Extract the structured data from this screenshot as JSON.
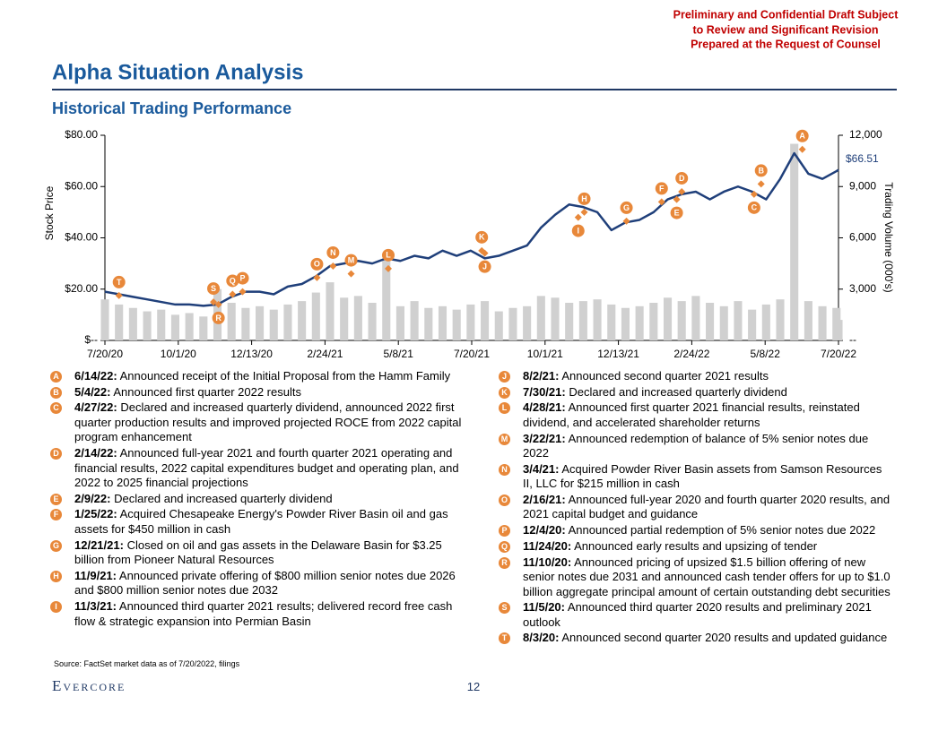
{
  "header": {
    "notice": [
      "Preliminary and Confidential Draft Subject",
      "to Review and Significant Revision",
      "Prepared at the Request of Counsel"
    ],
    "title": "Alpha Situation Analysis",
    "subtitle": "Historical Trading Performance"
  },
  "chart_data": {
    "type": "line",
    "y_label": "Stock Price",
    "y2_label": "Trading Volume (000's)",
    "x": [
      "2020-07-20",
      "2020-08-03",
      "2020-08-17",
      "2020-08-31",
      "2020-09-14",
      "2020-09-28",
      "2020-10-12",
      "2020-10-26",
      "2020-11-09",
      "2020-11-23",
      "2020-12-07",
      "2020-12-21",
      "2021-01-04",
      "2021-01-18",
      "2021-02-01",
      "2021-02-15",
      "2021-03-01",
      "2021-03-15",
      "2021-03-29",
      "2021-04-12",
      "2021-04-26",
      "2021-05-10",
      "2021-05-24",
      "2021-06-07",
      "2021-06-21",
      "2021-07-05",
      "2021-07-19",
      "2021-08-02",
      "2021-08-16",
      "2021-08-30",
      "2021-09-13",
      "2021-09-27",
      "2021-10-11",
      "2021-10-25",
      "2021-11-08",
      "2021-11-22",
      "2021-12-06",
      "2021-12-20",
      "2022-01-03",
      "2022-01-17",
      "2022-01-31",
      "2022-02-14",
      "2022-02-28",
      "2022-03-14",
      "2022-03-28",
      "2022-04-11",
      "2022-04-25",
      "2022-05-09",
      "2022-05-23",
      "2022-06-06",
      "2022-06-20",
      "2022-07-04",
      "2022-07-18",
      "2022-07-20"
    ],
    "xlim": [
      "2020-07-20",
      "2022-07-20"
    ],
    "xticks": [
      {
        "value": "2020-07-20",
        "label": "7/20/20"
      },
      {
        "value": "2020-10-01",
        "label": "10/1/20"
      },
      {
        "value": "2020-12-13",
        "label": "12/13/20"
      },
      {
        "value": "2021-02-24",
        "label": "2/24/21"
      },
      {
        "value": "2021-05-08",
        "label": "5/8/21"
      },
      {
        "value": "2021-07-20",
        "label": "7/20/21"
      },
      {
        "value": "2021-10-01",
        "label": "10/1/21"
      },
      {
        "value": "2021-12-13",
        "label": "12/13/21"
      },
      {
        "value": "2022-02-24",
        "label": "2/24/22"
      },
      {
        "value": "2022-05-08",
        "label": "5/8/22"
      },
      {
        "value": "2022-07-20",
        "label": "7/20/22"
      }
    ],
    "ylim": [
      0,
      80
    ],
    "yticks": [
      {
        "value": 0,
        "label": "$--"
      },
      {
        "value": 20,
        "label": "$20.00"
      },
      {
        "value": 40,
        "label": "$40.00"
      },
      {
        "value": 60,
        "label": "$60.00"
      },
      {
        "value": 80,
        "label": "$80.00"
      }
    ],
    "y2lim": [
      0,
      12000
    ],
    "y2ticks": [
      {
        "value": 0,
        "label": "--"
      },
      {
        "value": 3000,
        "label": "3,000"
      },
      {
        "value": 6000,
        "label": "6,000"
      },
      {
        "value": 9000,
        "label": "9,000"
      },
      {
        "value": 12000,
        "label": "12,000"
      }
    ],
    "series": [
      {
        "name": "Trading Volume",
        "type": "bar",
        "axis": "y2",
        "color": "#d0d0d0",
        "values": [
          2400,
          2100,
          1900,
          1700,
          1800,
          1500,
          1600,
          1400,
          3000,
          2200,
          1900,
          2000,
          1800,
          2100,
          2300,
          2800,
          3400,
          2500,
          2600,
          2200,
          4800,
          2000,
          2300,
          1900,
          2000,
          1800,
          2100,
          2300,
          1700,
          1900,
          2000,
          2600,
          2500,
          2200,
          2300,
          2400,
          2100,
          1900,
          2000,
          2200,
          2500,
          2300,
          2600,
          2200,
          2000,
          2300,
          1800,
          2100,
          2400,
          11500,
          2300,
          2000,
          1900,
          1200
        ]
      },
      {
        "name": "Stock Price",
        "type": "line",
        "color": "#1f3f7a",
        "values": [
          19,
          18,
          17,
          16,
          15,
          14,
          14,
          13.5,
          14,
          17,
          19,
          19,
          18,
          21,
          22,
          25,
          29,
          30,
          31,
          30,
          32,
          31,
          33,
          32,
          35,
          33,
          35,
          32,
          33,
          35,
          37,
          44,
          49,
          53,
          52,
          50,
          43,
          46,
          47,
          50,
          55,
          57,
          58,
          55,
          58,
          60,
          58,
          55,
          63,
          73,
          65,
          63,
          66,
          66.51
        ],
        "value_labels": [
          null,
          null,
          null,
          null,
          null,
          null,
          null,
          null,
          null,
          null,
          null,
          null,
          null,
          null,
          null,
          null,
          null,
          null,
          null,
          null,
          null,
          null,
          null,
          null,
          null,
          null,
          null,
          null,
          null,
          null,
          null,
          null,
          null,
          null,
          null,
          null,
          null,
          null,
          null,
          null,
          null,
          null,
          null,
          null,
          null,
          null,
          null,
          null,
          null,
          null,
          null,
          null,
          null,
          "$66.51"
        ]
      }
    ],
    "events": [
      {
        "letter": "A",
        "date": "2022-06-14",
        "price": 74.5,
        "label_side": "above",
        "date_label": "6/14/22:",
        "text": "Announced receipt of the Initial Proposal from the Hamm Family"
      },
      {
        "letter": "B",
        "date": "2022-05-04",
        "price": 61,
        "label_side": "above",
        "date_label": "5/4/22:",
        "text": "Announced first quarter 2022 results"
      },
      {
        "letter": "C",
        "date": "2022-04-27",
        "price": 57,
        "label_side": "below",
        "date_label": "4/27/22:",
        "text": "Declared and increased quarterly dividend, announced 2022 first quarter production results and improved projected ROCE from 2022 capital program enhancement"
      },
      {
        "letter": "D",
        "date": "2022-02-14",
        "price": 58,
        "label_side": "above",
        "date_label": "2/14/22:",
        "text": "Announced full-year 2021 and fourth quarter 2021 operating and financial results, 2022 capital expenditures budget and operating plan, and 2022 to 2025 financial projections"
      },
      {
        "letter": "E",
        "date": "2022-02-09",
        "price": 55,
        "label_side": "below",
        "date_label": "2/9/22:",
        "text": "Declared and increased quarterly dividend"
      },
      {
        "letter": "F",
        "date": "2022-01-25",
        "price": 54,
        "label_side": "above",
        "date_label": "1/25/22:",
        "text": "Acquired Chesapeake Energy's Powder River Basin oil and gas assets for $450 million in cash"
      },
      {
        "letter": "G",
        "date": "2021-12-21",
        "price": 46.5,
        "label_side": "above",
        "date_label": "12/21/21:",
        "text": "Closed on oil and gas assets in the Delaware Basin for $3.25 billion from Pioneer Natural Resources"
      },
      {
        "letter": "H",
        "date": "2021-11-09",
        "price": 50,
        "label_side": "above",
        "date_label": "11/9/21:",
        "text": "Announced private offering of $800 million senior notes due 2026 and $800 million senior notes due 2032"
      },
      {
        "letter": "I",
        "date": "2021-11-03",
        "price": 48,
        "label_side": "below",
        "date_label": "11/3/21:",
        "text": "Announced third quarter 2021 results; delivered record free cash flow & strategic expansion into Permian Basin"
      },
      {
        "letter": "J",
        "date": "2021-08-02",
        "price": 34,
        "label_side": "below",
        "date_label": "8/2/21:",
        "text": "Announced second quarter 2021 results"
      },
      {
        "letter": "K",
        "date": "2021-07-30",
        "price": 35,
        "label_side": "above",
        "date_label": "7/30/21:",
        "text": "Declared and increased quarterly dividend"
      },
      {
        "letter": "L",
        "date": "2021-04-28",
        "price": 28,
        "label_side": "above",
        "date_label": "4/28/21:",
        "text": "Announced first quarter 2021 financial results, reinstated dividend, and accelerated shareholder returns"
      },
      {
        "letter": "M",
        "date": "2021-03-22",
        "price": 26,
        "label_side": "above",
        "date_label": "3/22/21:",
        "text": "Announced redemption of balance of 5% senior notes due 2022"
      },
      {
        "letter": "N",
        "date": "2021-03-04",
        "price": 29,
        "label_side": "above",
        "date_label": "3/4/21:",
        "text": "Acquired Powder River Basin assets from Samson Resources II, LLC for $215 million in cash"
      },
      {
        "letter": "O",
        "date": "2021-02-16",
        "price": 24.5,
        "label_side": "above",
        "date_label": "2/16/21:",
        "text": "Announced full-year 2020 and fourth quarter 2020 results, and 2021 capital budget and guidance"
      },
      {
        "letter": "P",
        "date": "2020-12-04",
        "price": 19,
        "label_side": "above",
        "date_label": "12/4/20:",
        "text": "Announced partial redemption of 5% senior notes due 2022"
      },
      {
        "letter": "Q",
        "date": "2020-11-24",
        "price": 18,
        "label_side": "above",
        "date_label": "11/24/20:",
        "text": "Announced early results and upsizing of tender"
      },
      {
        "letter": "R",
        "date": "2020-11-10",
        "price": 14,
        "label_side": "below",
        "date_label": "11/10/20:",
        "text": "Announced pricing of upsized $1.5 billion offering of new senior notes due 2031 and announced cash tender offers for up to $1.0 billion aggregate principal amount of certain outstanding debt securities"
      },
      {
        "letter": "S",
        "date": "2020-11-05",
        "price": 15,
        "label_side": "above",
        "date_label": "11/5/20:",
        "text": "Announced third quarter 2020 results and preliminary 2021 outlook"
      },
      {
        "letter": "T",
        "date": "2020-08-03",
        "price": 17.5,
        "label_side": "above",
        "date_label": "8/3/20:",
        "text": "Announced second quarter 2020 results and updated guidance"
      }
    ]
  },
  "footer": {
    "source": "Source: FactSet market data as of 7/20/2022, filings",
    "logo": "Evercore",
    "page": "12"
  }
}
